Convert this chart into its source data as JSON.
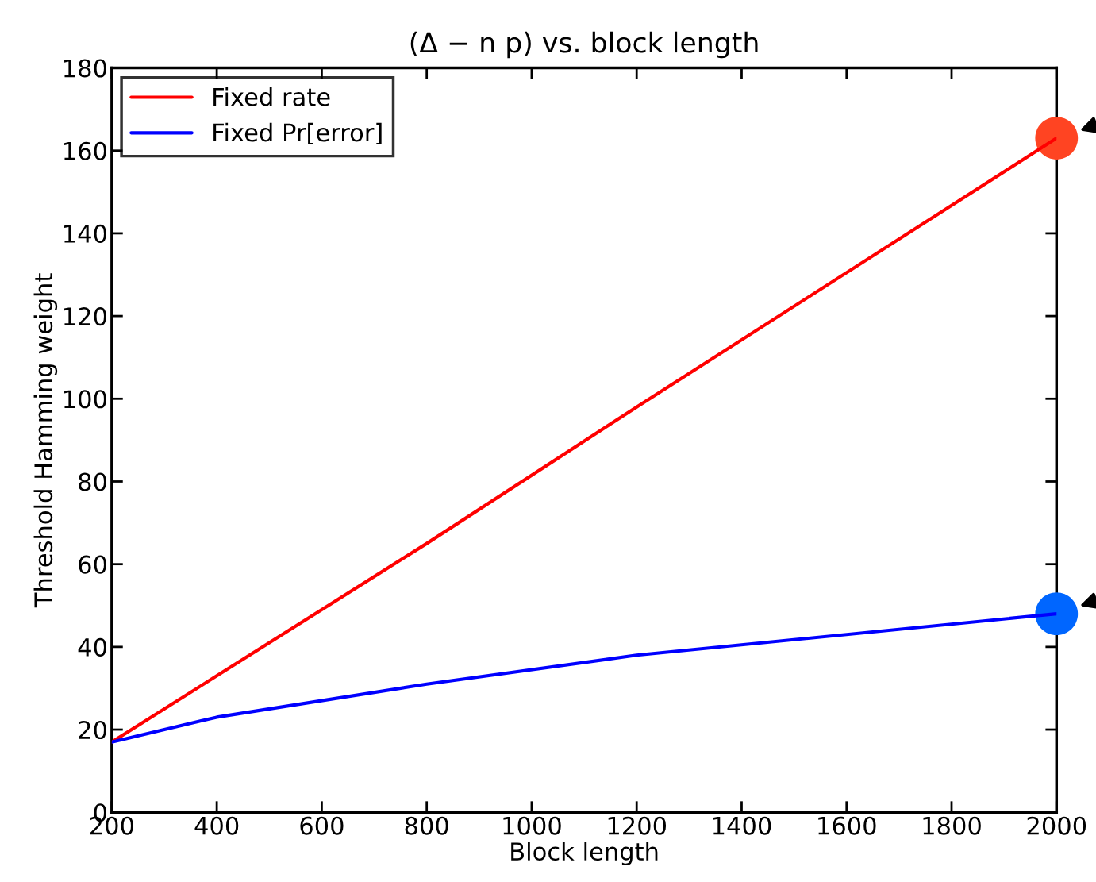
{
  "chart_data": {
    "type": "line",
    "title": "(Δ − n p) vs. block length",
    "xlabel": "Block length",
    "ylabel": "Threshold Hamming weight",
    "x": [
      200,
      400,
      800,
      1200,
      2000
    ],
    "series": [
      {
        "name": "Fixed rate",
        "color": "#ff0000",
        "values": [
          17,
          33,
          65,
          98,
          163
        ]
      },
      {
        "name": "Fixed Pr[error]",
        "color": "#0000ff",
        "values": [
          17,
          23,
          31,
          38,
          48
        ]
      },
      {
        "type": "scatter",
        "color": "#ff4422",
        "x": [
          2000
        ],
        "values": [
          163
        ],
        "marker": "circle"
      },
      {
        "type": "scatter",
        "color": "#0066ff",
        "x": [
          2000
        ],
        "values": [
          48
        ],
        "marker": "circle"
      }
    ],
    "xlim": [
      200,
      2000
    ],
    "xticks": [
      200,
      400,
      600,
      800,
      1000,
      1200,
      1400,
      1600,
      1800,
      2000
    ],
    "ylim": [
      0,
      180
    ],
    "yticks": [
      0,
      20,
      40,
      60,
      80,
      100,
      120,
      140,
      160,
      180
    ],
    "legend": "top left",
    "grid": false
  }
}
